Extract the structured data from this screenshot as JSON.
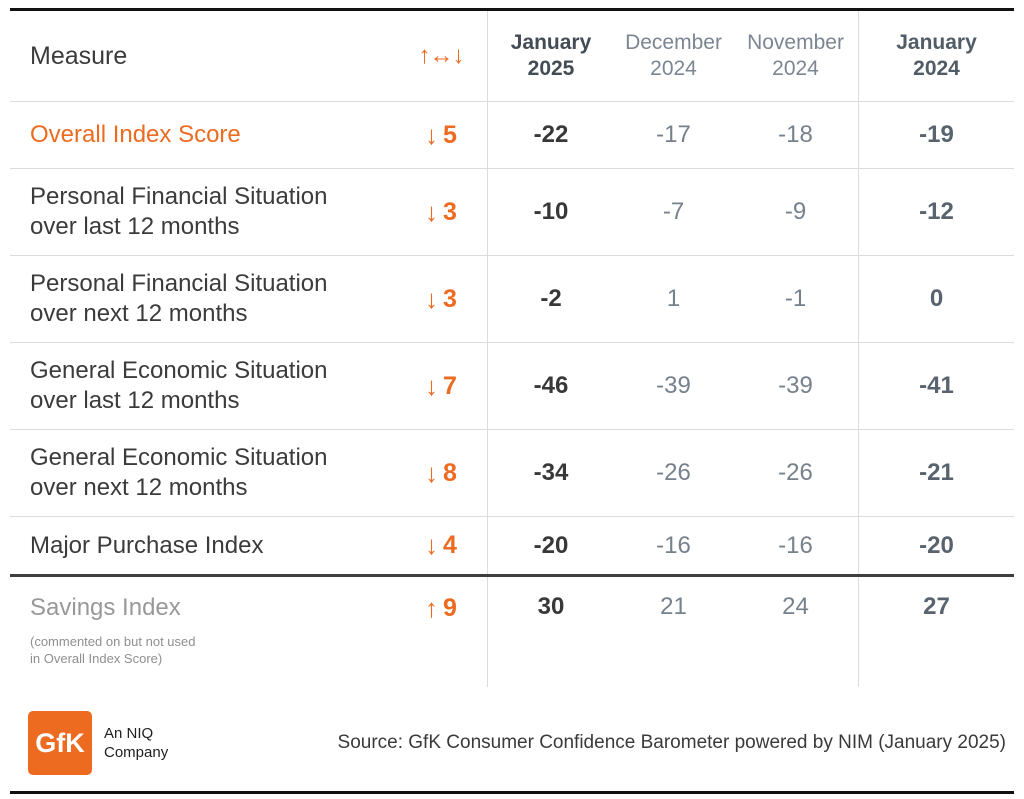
{
  "accent": "#ED6B21",
  "header": {
    "measure_label": "Measure",
    "change_symbol": "↑↔↓",
    "columns": [
      {
        "month": "January",
        "year": "2025"
      },
      {
        "month": "December",
        "year": "2024"
      },
      {
        "month": "November",
        "year": "2024"
      },
      {
        "month": "January",
        "year": "2024"
      }
    ]
  },
  "rows": [
    {
      "label1": "Overall Index Score",
      "label2": "",
      "arrow": "↓",
      "change": "5",
      "values": [
        "-22",
        "-17",
        "-18",
        "-19"
      ]
    },
    {
      "label1": "Personal Financial Situation",
      "label2": "over last 12 months",
      "arrow": "↓",
      "change": "3",
      "values": [
        "-10",
        "-7",
        "-9",
        "-12"
      ]
    },
    {
      "label1": "Personal Financial Situation",
      "label2": "over next 12 months",
      "arrow": "↓",
      "change": "3",
      "values": [
        "-2",
        "1",
        "-1",
        "0"
      ]
    },
    {
      "label1": "General Economic Situation",
      "label2": "over last 12 months",
      "arrow": "↓",
      "change": "7",
      "values": [
        "-46",
        "-39",
        "-39",
        "-41"
      ]
    },
    {
      "label1": "General Economic Situation",
      "label2": "over next 12 months",
      "arrow": "↓",
      "change": "8",
      "values": [
        "-34",
        "-26",
        "-26",
        "-21"
      ]
    },
    {
      "label1": "Major Purchase Index",
      "label2": "",
      "arrow": "↓",
      "change": "4",
      "values": [
        "-20",
        "-16",
        "-16",
        "-20"
      ]
    },
    {
      "label1": "Savings Index",
      "label2": "",
      "note1": "(commented on but not used",
      "note2": "in Overall Index Score)",
      "arrow": "↑",
      "change": "9",
      "values": [
        "30",
        "21",
        "24",
        "27"
      ]
    }
  ],
  "footer": {
    "logo_text": "GfK",
    "tagline_line1": "An NIQ",
    "tagline_line2": "Company",
    "source": "Source: GfK Consumer Confidence Barometer powered by NIM (January 2025)"
  },
  "chart_data": {
    "type": "table",
    "columns": [
      "Measure",
      "Change vs previous month",
      "January 2025",
      "December 2024",
      "November 2024",
      "January 2024"
    ],
    "rows": [
      [
        "Overall Index Score",
        -5,
        -22,
        -17,
        -18,
        -19
      ],
      [
        "Personal Financial Situation over last 12 months",
        -3,
        -10,
        -7,
        -9,
        -12
      ],
      [
        "Personal Financial Situation over next 12 months",
        -3,
        -2,
        1,
        -1,
        0
      ],
      [
        "General Economic Situation over last 12 months",
        -7,
        -46,
        -39,
        -39,
        -41
      ],
      [
        "General Economic Situation over next 12 months",
        -8,
        -34,
        -26,
        -26,
        -21
      ],
      [
        "Major Purchase Index",
        -4,
        -20,
        -16,
        -16,
        -20
      ],
      [
        "Savings Index (commented on but not used in Overall Index Score)",
        9,
        30,
        21,
        24,
        27
      ]
    ],
    "caption": "Source: GfK Consumer Confidence Barometer powered by NIM (January 2025)"
  }
}
